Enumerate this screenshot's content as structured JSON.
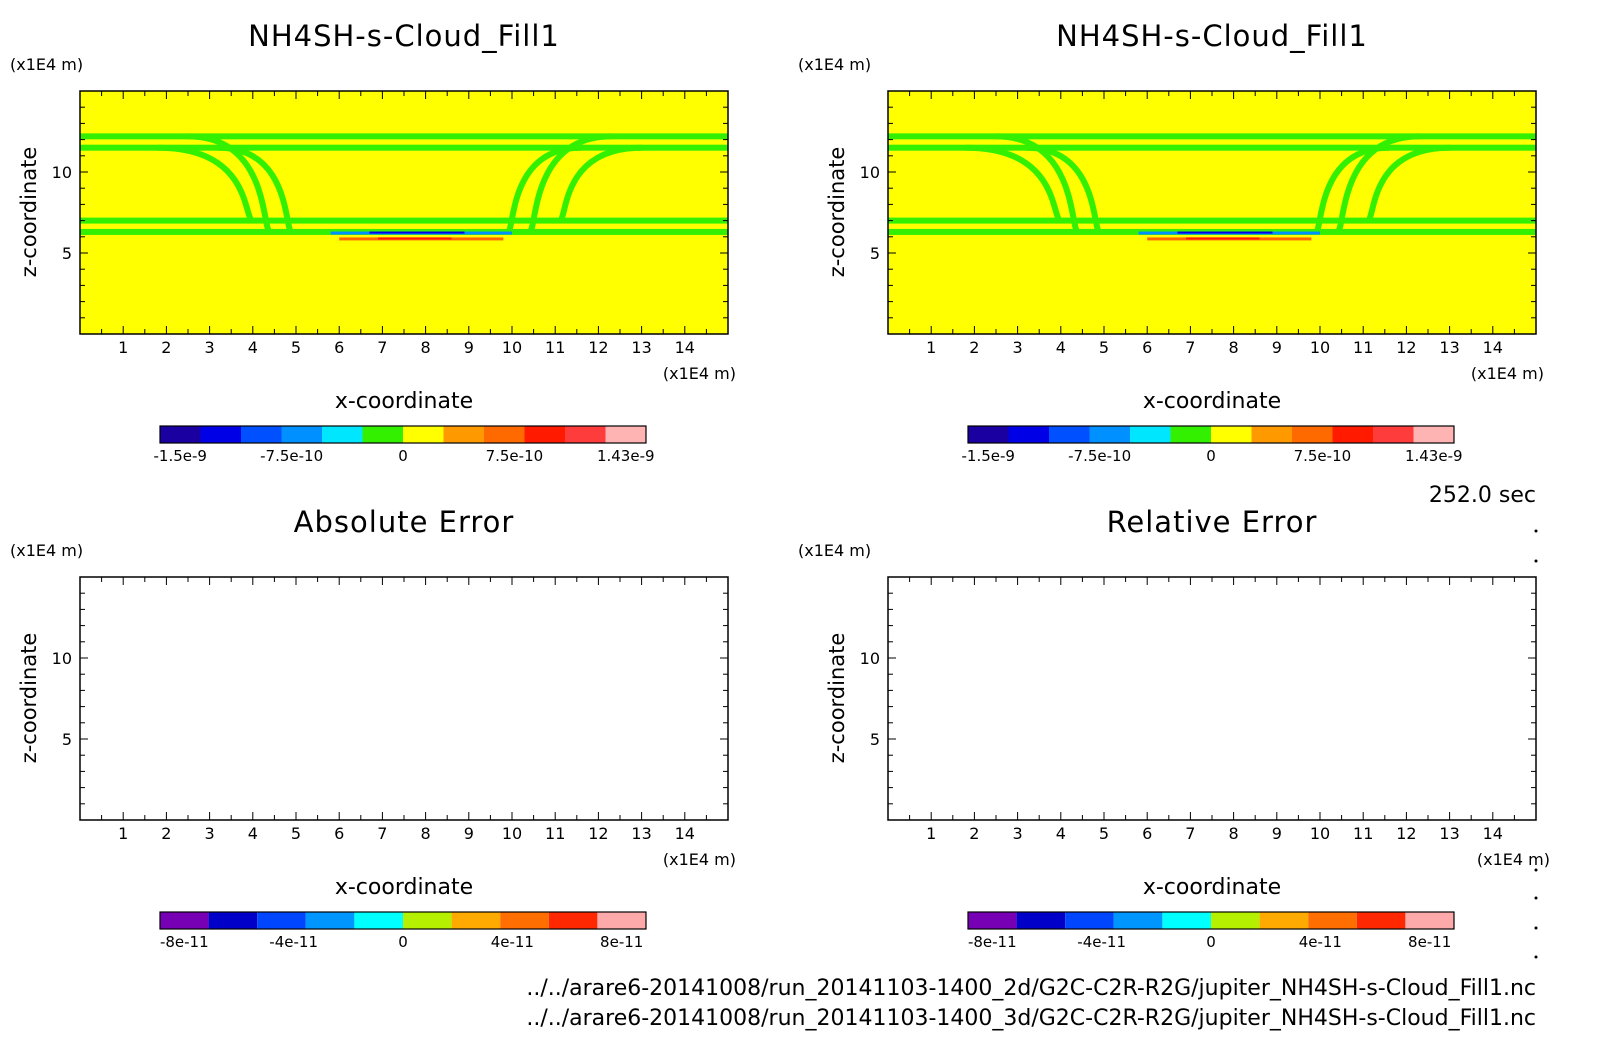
{
  "chart_data": [
    {
      "type": "heatmap",
      "title": "NH4SH-s-Cloud_Fill1",
      "xlabel": "x-coordinate",
      "ylabel": "z-coordinate",
      "x_unit": "(x1E4 m)",
      "y_unit": "(x1E4 m)",
      "xlim": [
        0,
        15
      ],
      "ylim": [
        0,
        15
      ],
      "x_ticks": [
        "1",
        "2",
        "3",
        "4",
        "5",
        "6",
        "7",
        "8",
        "9",
        "10",
        "11",
        "12",
        "13",
        "14"
      ],
      "y_ticks": [
        "5",
        "10"
      ],
      "field": {
        "background_value": 0,
        "bands": [
          {
            "z": 12.2
          },
          {
            "z": 11.5
          },
          {
            "z": 7.0
          },
          {
            "z": 6.3
          }
        ],
        "negative_anomaly": {
          "x_range": [
            5.8,
            10
          ],
          "z": 6.2,
          "min": -1.5e-09
        },
        "positive_anomaly": {
          "x_range": [
            6,
            9.8
          ],
          "z": 5.9,
          "max": 1.43e-09
        }
      },
      "colorbar": {
        "colors": [
          "#1a00a0",
          "#0000e6",
          "#0050ff",
          "#0090ff",
          "#00e6ff",
          "#32f000",
          "#ffff00",
          "#ff9900",
          "#ff6a00",
          "#ff1a00",
          "#ff3c3c",
          "#ffb4b4"
        ],
        "labels": [
          "-1.5e-9",
          "-7.5e-10",
          "0",
          "7.5e-10",
          "1.43e-9"
        ]
      }
    },
    {
      "type": "heatmap",
      "title": "NH4SH-s-Cloud_Fill1",
      "xlabel": "x-coordinate",
      "ylabel": "z-coordinate",
      "x_unit": "(x1E4 m)",
      "y_unit": "(x1E4 m)",
      "xlim": [
        0,
        15
      ],
      "ylim": [
        0,
        15
      ],
      "x_ticks": [
        "1",
        "2",
        "3",
        "4",
        "5",
        "6",
        "7",
        "8",
        "9",
        "10",
        "11",
        "12",
        "13",
        "14"
      ],
      "y_ticks": [
        "5",
        "10"
      ],
      "field": {
        "background_value": 0,
        "bands": [
          {
            "z": 12.2
          },
          {
            "z": 11.5
          },
          {
            "z": 7.0
          },
          {
            "z": 6.3
          }
        ],
        "negative_anomaly": {
          "x_range": [
            5.8,
            10
          ],
          "z": 6.2,
          "min": -1.5e-09
        },
        "positive_anomaly": {
          "x_range": [
            6,
            9.8
          ],
          "z": 5.9,
          "max": 1.43e-09
        }
      },
      "colorbar": {
        "colors": [
          "#1a00a0",
          "#0000e6",
          "#0050ff",
          "#0090ff",
          "#00e6ff",
          "#32f000",
          "#ffff00",
          "#ff9900",
          "#ff6a00",
          "#ff1a00",
          "#ff3c3c",
          "#ffb4b4"
        ],
        "labels": [
          "-1.5e-9",
          "-7.5e-10",
          "0",
          "7.5e-10",
          "1.43e-9"
        ]
      }
    },
    {
      "type": "heatmap",
      "title": "Absolute Error",
      "xlabel": "x-coordinate",
      "ylabel": "z-coordinate",
      "x_unit": "(x1E4 m)",
      "y_unit": "(x1E4 m)",
      "xlim": [
        0,
        15
      ],
      "ylim": [
        0,
        15
      ],
      "x_ticks": [
        "1",
        "2",
        "3",
        "4",
        "5",
        "6",
        "7",
        "8",
        "9",
        "10",
        "11",
        "12",
        "13",
        "14"
      ],
      "y_ticks": [
        "5",
        "10"
      ],
      "field": null,
      "colorbar": {
        "colors": [
          "#7800b4",
          "#0000c8",
          "#0046ff",
          "#0096ff",
          "#00ffff",
          "#b4f000",
          "#ffaa00",
          "#ff6e00",
          "#ff2800",
          "#ffaaaa"
        ],
        "labels": [
          "-8e-11",
          "-4e-11",
          "0",
          "4e-11",
          "8e-11"
        ]
      }
    },
    {
      "type": "heatmap",
      "title": "Relative Error",
      "xlabel": "x-coordinate",
      "ylabel": "z-coordinate",
      "x_unit": "(x1E4 m)",
      "y_unit": "(x1E4 m)",
      "xlim": [
        0,
        15
      ],
      "ylim": [
        0,
        15
      ],
      "x_ticks": [
        "1",
        "2",
        "3",
        "4",
        "5",
        "6",
        "7",
        "8",
        "9",
        "10",
        "11",
        "12",
        "13",
        "14"
      ],
      "y_ticks": [
        "5",
        "10"
      ],
      "field": null,
      "colorbar": {
        "colors": [
          "#7800b4",
          "#0000c8",
          "#0046ff",
          "#0096ff",
          "#00ffff",
          "#b4f000",
          "#ffaa00",
          "#ff6e00",
          "#ff2800",
          "#ffaaaa"
        ],
        "labels": [
          "-8e-11",
          "-4e-11",
          "0",
          "4e-11",
          "8e-11"
        ]
      }
    }
  ],
  "time_label": "252.0 sec",
  "file_paths": [
    "../../arare6-20141008/run_20141103-1400_2d/G2C-C2R-R2G/jupiter_NH4SH-s-Cloud_Fill1.nc",
    "../../arare6-20141008/run_20141103-1400_3d/G2C-C2R-R2G/jupiter_NH4SH-s-Cloud_Fill1.nc"
  ],
  "colors": {
    "background": "#ffffff",
    "field_zero": "#ffff00",
    "band": "#32f000"
  }
}
